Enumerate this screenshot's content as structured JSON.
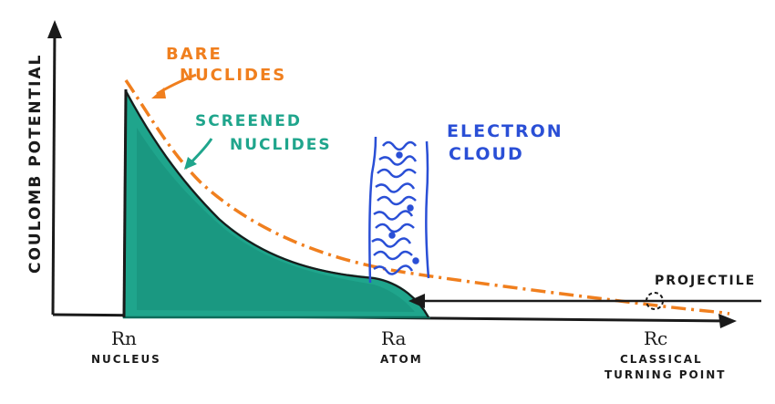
{
  "axes": {
    "ylabel": "COULOMB POTENTIAL"
  },
  "labels": {
    "bare_line1": "BARE",
    "bare_line2": "NUCLIDES",
    "screened_line1": "SCREENED",
    "screened_line2": "NUCLIDES",
    "cloud_line1": "ELECTRON",
    "cloud_line2": "CLOUD",
    "projectile": "PROJECTILE",
    "rn": "Rn",
    "rn_sub": "NUCLEUS",
    "ra": "Ra",
    "ra_sub": "ATOM",
    "rc": "Rc",
    "rc_sub1": "CLASSICAL",
    "rc_sub2": "TURNING POINT"
  },
  "colors": {
    "bare": "#f07f1e",
    "screened_fill": "#1fa58c",
    "screened_dark": "#0e6d5c",
    "cloud": "#2a4fd6",
    "ink": "#1a1a1a"
  }
}
